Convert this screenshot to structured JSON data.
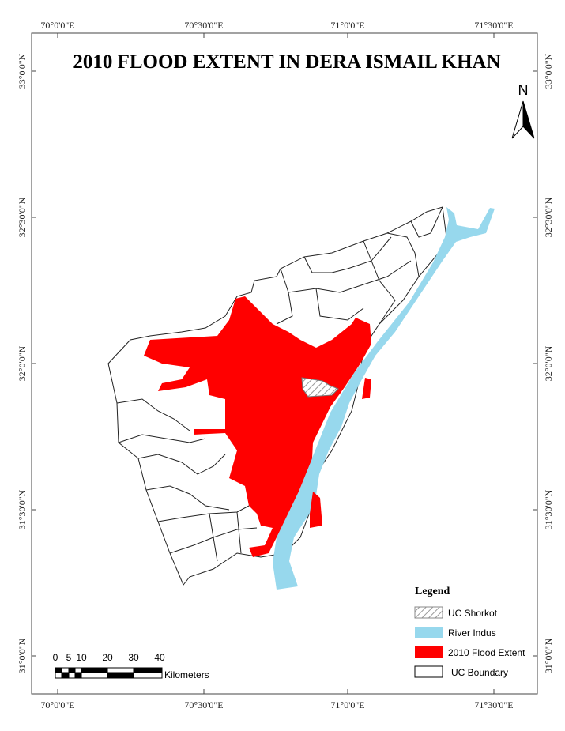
{
  "map": {
    "title": "2010 FLOOD EXTENT IN DERA ISMAIL KHAN",
    "longitude_labels": [
      "70°0'0\"E",
      "70°30'0\"E",
      "71°0'0\"E",
      "71°30'0\"E"
    ],
    "latitude_labels": [
      "33°0'0\"N",
      "32°30'0\"N",
      "32°0'0\"N",
      "31°30'0\"N",
      "31°0'0\"N"
    ],
    "north": "N",
    "legend": {
      "title": "Legend",
      "items": [
        "UC Shorkot",
        "River Indus",
        "2010 Flood Extent",
        "UC Boundary"
      ]
    },
    "scale": {
      "ticks": [
        "0",
        "5",
        "10",
        "20",
        "30",
        "40"
      ],
      "unit": "Kilometers"
    }
  }
}
